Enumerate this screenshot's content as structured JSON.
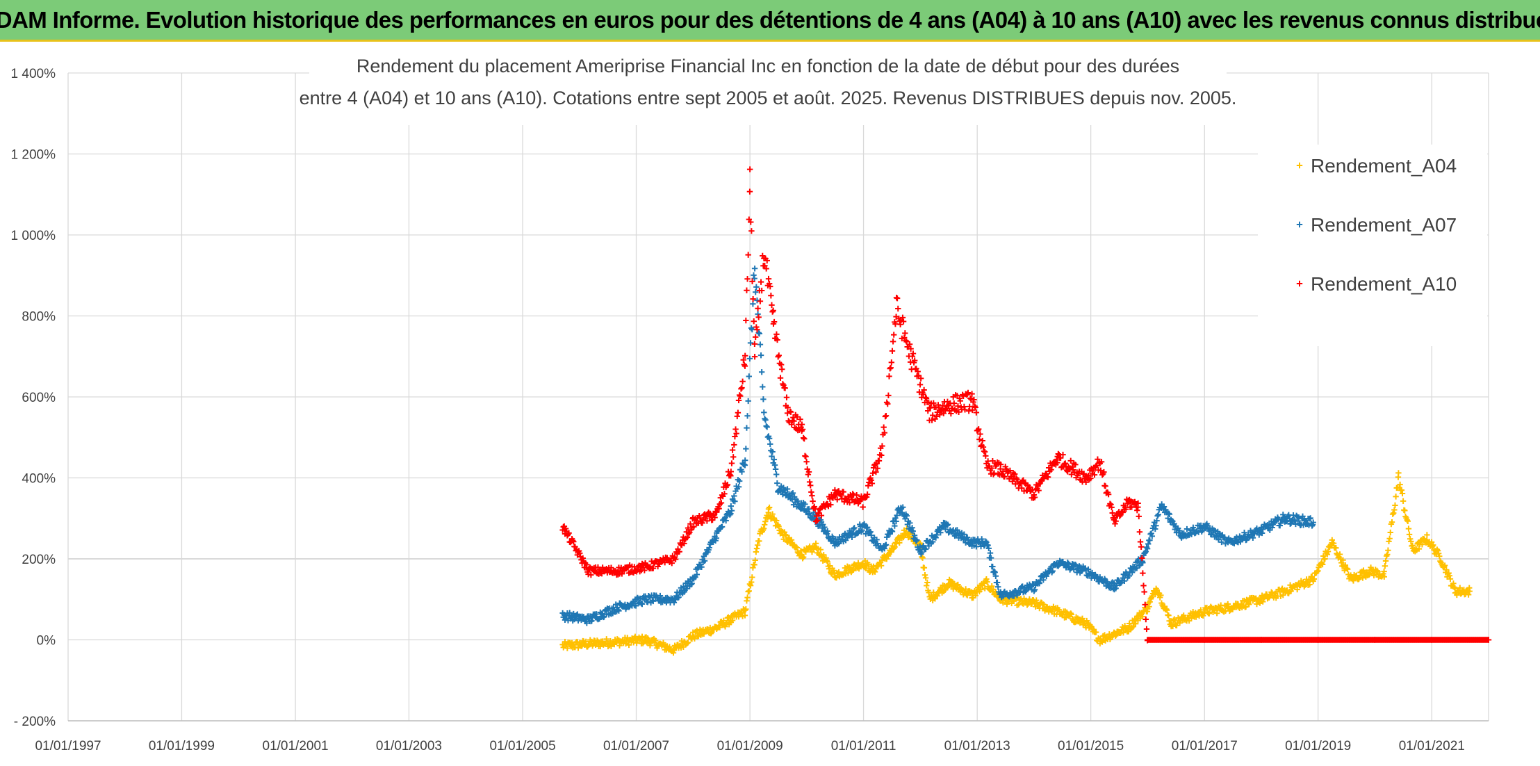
{
  "banner": {
    "title": "ADAM Informe. Evolution historique des performances en euros pour des détentions de 4 ans (A04) à 10 ans (A10) avec les revenus connus distribués"
  },
  "chart_data": {
    "type": "scatter",
    "title_lines": [
      "Rendement du placement Ameriprise Financial Inc en fonction de la date de début pour des durées",
      "entre 4 (A04) et 10 ans (A10). Cotations entre sept 2005 et août. 2025. Revenus DISTRIBUES depuis nov. 2005."
    ],
    "x_range": [
      "1997-01-01",
      "2022-01-01"
    ],
    "x_ticks": [
      "01/01/1997",
      "01/01/1999",
      "01/01/2001",
      "01/01/2003",
      "01/01/2005",
      "01/01/2007",
      "01/01/2009",
      "01/01/2011",
      "01/01/2013",
      "01/01/2015",
      "01/01/2017",
      "01/01/2019",
      "01/01/2021"
    ],
    "y_range": [
      -200,
      1400
    ],
    "y_ticks": [
      {
        "value": 1400,
        "label": "1 400%"
      },
      {
        "value": 1200,
        "label": "1 200%"
      },
      {
        "value": 1000,
        "label": "1 000%"
      },
      {
        "value": 800,
        "label": "800%"
      },
      {
        "value": 600,
        "label": "600%"
      },
      {
        "value": 400,
        "label": "400%"
      },
      {
        "value": 200,
        "label": "200%"
      },
      {
        "value": 0,
        "label": "0%"
      },
      {
        "value": -200,
        "label": "- 200%"
      }
    ],
    "grid": true,
    "legend_position": "top-right",
    "series": [
      {
        "name": "Rendement_A04",
        "color": "#ffc000",
        "points": [
          [
            "2005-09-15",
            -15
          ],
          [
            "2006-03-01",
            -10
          ],
          [
            "2006-09-01",
            -5
          ],
          [
            "2007-03-01",
            0
          ],
          [
            "2007-09-01",
            -25
          ],
          [
            "2008-01-01",
            10
          ],
          [
            "2008-06-01",
            30
          ],
          [
            "2008-09-01",
            50
          ],
          [
            "2008-12-01",
            70
          ],
          [
            "2009-03-01",
            250
          ],
          [
            "2009-05-01",
            320
          ],
          [
            "2009-08-01",
            260
          ],
          [
            "2009-12-01",
            210
          ],
          [
            "2010-03-01",
            230
          ],
          [
            "2010-07-01",
            160
          ],
          [
            "2011-01-01",
            190
          ],
          [
            "2011-03-01",
            170
          ],
          [
            "2011-07-01",
            220
          ],
          [
            "2011-10-01",
            270
          ],
          [
            "2012-01-01",
            230
          ],
          [
            "2012-03-01",
            100
          ],
          [
            "2012-07-01",
            140
          ],
          [
            "2012-12-01",
            110
          ],
          [
            "2013-03-01",
            140
          ],
          [
            "2013-06-01",
            100
          ],
          [
            "2014-01-01",
            90
          ],
          [
            "2014-06-01",
            70
          ],
          [
            "2014-12-01",
            40
          ],
          [
            "2015-03-01",
            0
          ],
          [
            "2015-09-01",
            30
          ],
          [
            "2016-01-01",
            80
          ],
          [
            "2016-03-01",
            130
          ],
          [
            "2016-06-01",
            40
          ],
          [
            "2017-01-01",
            70
          ],
          [
            "2017-06-01",
            80
          ],
          [
            "2018-01-01",
            100
          ],
          [
            "2018-06-01",
            120
          ],
          [
            "2018-12-01",
            150
          ],
          [
            "2019-04-01",
            240
          ],
          [
            "2019-08-01",
            150
          ],
          [
            "2019-12-01",
            170
          ],
          [
            "2020-03-01",
            160
          ],
          [
            "2020-06-01",
            400
          ],
          [
            "2020-09-01",
            220
          ],
          [
            "2020-12-01",
            250
          ],
          [
            "2021-03-01",
            200
          ],
          [
            "2021-06-01",
            120
          ],
          [
            "2021-09-01",
            120
          ]
        ]
      },
      {
        "name": "Rendement_A07",
        "color": "#1f77b4",
        "points": [
          [
            "2005-09-15",
            60
          ],
          [
            "2006-03-01",
            50
          ],
          [
            "2006-09-01",
            80
          ],
          [
            "2007-03-01",
            100
          ],
          [
            "2007-09-01",
            100
          ],
          [
            "2008-01-01",
            150
          ],
          [
            "2008-06-01",
            260
          ],
          [
            "2008-09-01",
            320
          ],
          [
            "2008-12-01",
            450
          ],
          [
            "2009-02-01",
            920
          ],
          [
            "2009-04-01",
            560
          ],
          [
            "2009-07-01",
            380
          ],
          [
            "2009-12-01",
            330
          ],
          [
            "2010-03-01",
            300
          ],
          [
            "2010-07-01",
            240
          ],
          [
            "2011-01-01",
            280
          ],
          [
            "2011-05-01",
            220
          ],
          [
            "2011-09-01",
            330
          ],
          [
            "2012-01-01",
            220
          ],
          [
            "2012-06-01",
            280
          ],
          [
            "2012-12-01",
            240
          ],
          [
            "2013-03-01",
            240
          ],
          [
            "2013-06-01",
            110
          ],
          [
            "2014-01-01",
            130
          ],
          [
            "2014-06-01",
            190
          ],
          [
            "2014-12-01",
            170
          ],
          [
            "2015-06-01",
            130
          ],
          [
            "2015-12-01",
            200
          ],
          [
            "2016-04-01",
            330
          ],
          [
            "2016-08-01",
            260
          ],
          [
            "2017-01-01",
            280
          ],
          [
            "2017-06-01",
            240
          ],
          [
            "2018-01-01",
            270
          ],
          [
            "2018-06-01",
            300
          ],
          [
            "2018-12-01",
            290
          ]
        ]
      },
      {
        "name": "Rendement_A10",
        "color": "#ff0000",
        "points": [
          [
            "2005-09-15",
            280
          ],
          [
            "2006-03-01",
            170
          ],
          [
            "2006-09-01",
            170
          ],
          [
            "2007-03-01",
            180
          ],
          [
            "2007-09-01",
            200
          ],
          [
            "2008-01-01",
            290
          ],
          [
            "2008-06-01",
            310
          ],
          [
            "2008-09-01",
            420
          ],
          [
            "2008-12-01",
            700
          ],
          [
            "2009-01-01",
            1120
          ],
          [
            "2009-02-01",
            700
          ],
          [
            "2009-04-01",
            960
          ],
          [
            "2009-06-01",
            780
          ],
          [
            "2009-09-01",
            560
          ],
          [
            "2009-12-01",
            520
          ],
          [
            "2010-03-01",
            300
          ],
          [
            "2010-07-01",
            360
          ],
          [
            "2011-01-01",
            340
          ],
          [
            "2011-05-01",
            470
          ],
          [
            "2011-08-01",
            820
          ],
          [
            "2011-11-01",
            700
          ],
          [
            "2012-03-01",
            560
          ],
          [
            "2012-07-01",
            580
          ],
          [
            "2012-12-01",
            590
          ],
          [
            "2013-03-01",
            430
          ],
          [
            "2013-06-01",
            420
          ],
          [
            "2014-01-01",
            360
          ],
          [
            "2014-06-01",
            450
          ],
          [
            "2014-12-01",
            400
          ],
          [
            "2015-03-01",
            440
          ],
          [
            "2015-06-01",
            290
          ],
          [
            "2015-09-01",
            340
          ],
          [
            "2015-11-01",
            330
          ],
          [
            "2016-01-01",
            0
          ],
          [
            "2017-01-01",
            0
          ],
          [
            "2018-01-01",
            0
          ],
          [
            "2019-01-01",
            0
          ],
          [
            "2020-01-01",
            0
          ],
          [
            "2021-01-01",
            0
          ],
          [
            "2022-01-01",
            0
          ]
        ]
      }
    ]
  }
}
